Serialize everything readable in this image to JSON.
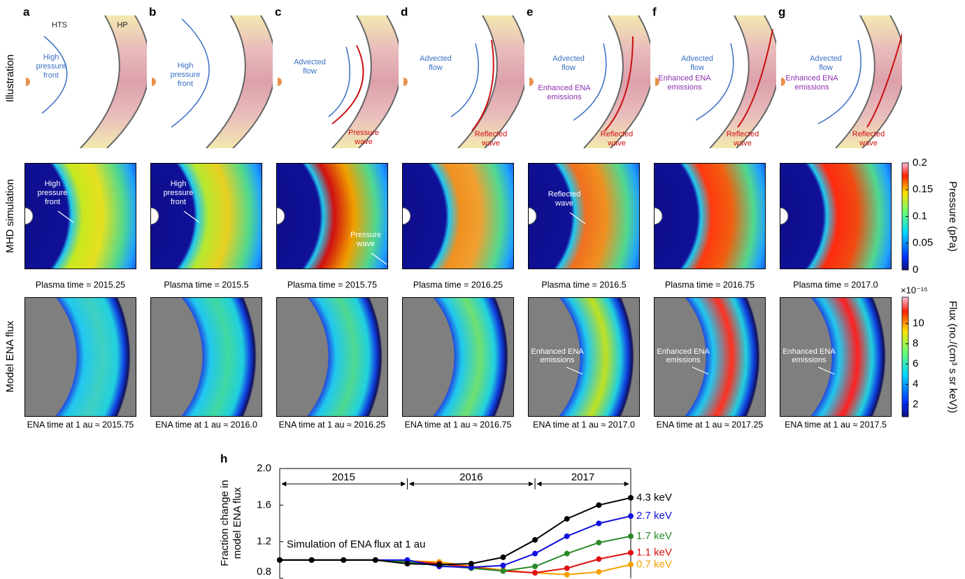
{
  "row_labels": [
    "Illustration",
    "MHD simulation",
    "Model ENA flux"
  ],
  "panels": [
    {
      "letter": "a",
      "illustration": [
        [
          "HTS"
        ],
        [
          "HP"
        ],
        [
          "High",
          "pressure",
          "front"
        ]
      ],
      "mhd_labels": [
        [
          "High",
          "pressure",
          "front"
        ]
      ],
      "mhd_caption": "Plasma time = 2015.25",
      "ena_labels": [],
      "ena_caption": "ENA time at 1 au ≈ 2015.75"
    },
    {
      "letter": "b",
      "illustration": [
        [
          "High",
          "pressure",
          "front"
        ]
      ],
      "mhd_labels": [
        [
          "High",
          "pressure",
          "front"
        ]
      ],
      "mhd_caption": "Plasma time = 2015.5",
      "ena_labels": [],
      "ena_caption": "ENA time at 1 au ≈ 2016.0"
    },
    {
      "letter": "c",
      "illustration": [
        [
          "Advected",
          "flow"
        ],
        [
          "Pressure",
          "wave"
        ]
      ],
      "mhd_labels": [
        [
          "Pressure",
          "wave"
        ]
      ],
      "mhd_caption": "Plasma time = 2015.75",
      "ena_labels": [],
      "ena_caption": "ENA time at 1 au ≈ 2016.25"
    },
    {
      "letter": "d",
      "illustration": [
        [
          "Advected",
          "flow"
        ],
        [
          "Reflected",
          "wave"
        ]
      ],
      "mhd_labels": [],
      "mhd_caption": "Plasma time = 2016.25",
      "ena_labels": [],
      "ena_caption": "ENA time at 1 au ≈ 2016.75"
    },
    {
      "letter": "e",
      "illustration": [
        [
          "Advected",
          "flow"
        ],
        [
          "Enhanced ENA",
          "emissions"
        ],
        [
          "Reflected",
          "wave"
        ]
      ],
      "mhd_labels": [
        [
          "Reflected",
          "wave"
        ]
      ],
      "mhd_caption": "Plasma time = 2016.5",
      "ena_labels": [
        [
          "Enhanced ENA",
          "emissions"
        ]
      ],
      "ena_caption": "ENA time at 1 au ≈ 2017.0"
    },
    {
      "letter": "f",
      "illustration": [
        [
          "Advected",
          "flow"
        ],
        [
          "Enhanced ENA",
          "emissions"
        ],
        [
          "Reflected",
          "wave"
        ]
      ],
      "mhd_labels": [],
      "mhd_caption": "Plasma time = 2016.75",
      "ena_labels": [
        [
          "Enhanced ENA",
          "emissions"
        ]
      ],
      "ena_caption": "ENA time at 1 au ≈ 2017.25"
    },
    {
      "letter": "g",
      "illustration": [
        [
          "Advected",
          "flow"
        ],
        [
          "Enhanced ENA",
          "emissions"
        ],
        [
          "Reflected",
          "wave"
        ]
      ],
      "mhd_labels": [],
      "mhd_caption": "Plasma time = 2017.0",
      "ena_labels": [
        [
          "Enhanced ENA",
          "emissions"
        ]
      ],
      "ena_caption": "ENA time at 1 au ≈ 2017.5"
    }
  ],
  "pressure_colorbar": {
    "label": "Pressure (pPa)",
    "lim": [
      0,
      0.2
    ],
    "ticks": [
      0,
      0.05,
      0.1,
      0.15,
      0.2
    ]
  },
  "flux_colorbar": {
    "label": "Flux (no./(cm³ s sr keV))",
    "exponent": "×10⁻¹⁵",
    "lim": [
      0.8,
      12.6
    ],
    "ticks": [
      2,
      4,
      6,
      8,
      10
    ]
  },
  "chart_data": {
    "type": "line",
    "letter": "h",
    "y_label": [
      "Fraction change in",
      "model ENA flux"
    ],
    "annotation": "Simulation of ENA flux at 1 au",
    "period_labels": [
      "2015",
      "2016",
      "2017"
    ],
    "categories": [
      null,
      null,
      null,
      null,
      null,
      null,
      null,
      null,
      null,
      null,
      null,
      null
    ],
    "ylim": [
      0.8,
      2.0
    ],
    "yticks": [
      0.8,
      1.2,
      1.6,
      {
        "value": 2.0,
        "label": "2.0"
      }
    ],
    "series": [
      {
        "name": "4.3 keV",
        "color": "#000000",
        "values": [
          1.0,
          1.0,
          1.0,
          1.0,
          0.96,
          0.95,
          0.96,
          1.03,
          1.22,
          1.45,
          1.6,
          1.68
        ]
      },
      {
        "name": "2.7 keV",
        "color": "#1010e0",
        "values": [
          1.0,
          1.0,
          1.0,
          1.0,
          1.0,
          0.93,
          0.92,
          0.94,
          1.07,
          1.26,
          1.4,
          1.48
        ]
      },
      {
        "name": "1.7 keV",
        "color": "#2a8a2a",
        "values": [
          1.0,
          1.0,
          1.0,
          1.0,
          0.98,
          0.94,
          0.91,
          0.88,
          0.93,
          1.07,
          1.19,
          1.26
        ]
      },
      {
        "name": "1.1 keV",
        "color": "#e01010",
        "values": [
          1.0,
          1.0,
          1.0,
          1.0,
          0.99,
          0.96,
          0.92,
          0.88,
          0.86,
          0.91,
          1.01,
          1.08
        ]
      },
      {
        "name": "0.7 keV",
        "color": "#f5a000",
        "values": [
          1.0,
          1.0,
          1.0,
          1.0,
          0.99,
          0.98,
          0.93,
          0.89,
          0.86,
          0.84,
          0.87,
          0.95
        ]
      }
    ]
  }
}
